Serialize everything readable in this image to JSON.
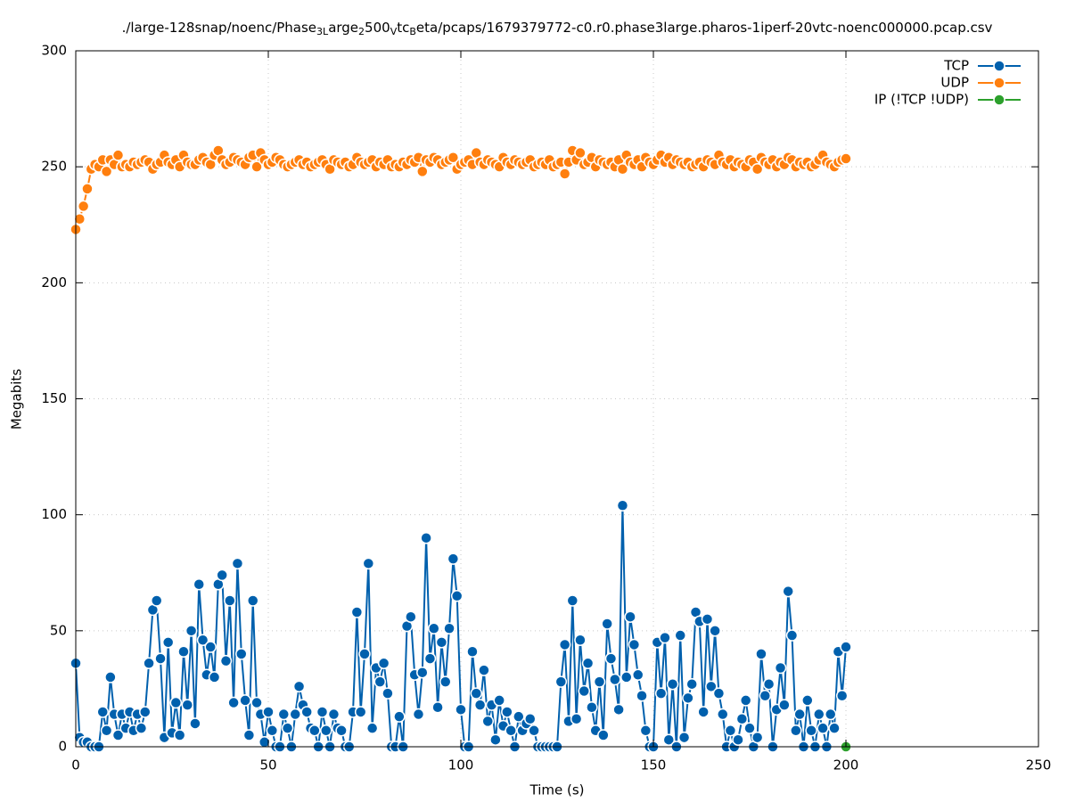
{
  "chart_data": {
    "type": "line",
    "title": [
      "./large-128snap/noenc/Phase",
      "3L",
      "arge",
      "2",
      "500",
      "V",
      "tc",
      "B",
      "eta/pcaps/1679379772-c0.r0.phase3large.pharos-1iperf-20vtc-noenc000000.pcap.csv"
    ],
    "xlabel": "Time (s)",
    "ylabel": "Megabits",
    "xlim": [
      0,
      250
    ],
    "xticks": [
      0,
      50,
      100,
      150,
      200,
      250
    ],
    "ylim": [
      0,
      300
    ],
    "yticks": [
      0,
      50,
      100,
      150,
      200,
      250,
      300
    ],
    "grid": true,
    "legend": "top-right",
    "x": [
      0,
      1,
      2,
      3,
      4,
      5,
      6,
      7,
      8,
      9,
      10,
      11,
      12,
      13,
      14,
      15,
      16,
      17,
      18,
      19,
      20,
      21,
      22,
      23,
      24,
      25,
      26,
      27,
      28,
      29,
      30,
      31,
      32,
      33,
      34,
      35,
      36,
      37,
      38,
      39,
      40,
      41,
      42,
      43,
      44,
      45,
      46,
      47,
      48,
      49,
      50,
      51,
      52,
      53,
      54,
      55,
      56,
      57,
      58,
      59,
      60,
      61,
      62,
      63,
      64,
      65,
      66,
      67,
      68,
      69,
      70,
      71,
      72,
      73,
      74,
      75,
      76,
      77,
      78,
      79,
      80,
      81,
      82,
      83,
      84,
      85,
      86,
      87,
      88,
      89,
      90,
      91,
      92,
      93,
      94,
      95,
      96,
      97,
      98,
      99,
      100,
      101,
      102,
      103,
      104,
      105,
      106,
      107,
      108,
      109,
      110,
      111,
      112,
      113,
      114,
      115,
      116,
      117,
      118,
      119,
      120,
      121,
      122,
      123,
      124,
      125,
      126,
      127,
      128,
      129,
      130,
      131,
      132,
      133,
      134,
      135,
      136,
      137,
      138,
      139,
      140,
      141,
      142,
      143,
      144,
      145,
      146,
      147,
      148,
      149,
      150,
      151,
      152,
      153,
      154,
      155,
      156,
      157,
      158,
      159,
      160,
      161,
      162,
      163,
      164,
      165,
      166,
      167,
      168,
      169,
      170,
      171,
      172,
      173,
      174,
      175,
      176,
      177,
      178,
      179,
      180,
      181,
      182,
      183,
      184,
      185,
      186,
      187,
      188,
      189,
      190,
      191,
      192,
      193,
      194,
      195,
      196,
      197,
      198,
      199,
      200
    ],
    "series": [
      {
        "name": "TCP",
        "color": "#0060ad",
        "values": [
          36,
          4,
          2,
          2,
          0,
          0,
          0,
          15,
          7,
          30,
          14,
          5,
          14,
          8,
          15,
          7,
          14,
          8,
          15,
          36,
          59,
          63,
          38,
          4,
          45,
          6,
          19,
          5,
          41,
          18,
          50,
          10,
          70,
          46,
          31,
          43,
          30,
          70,
          74,
          37,
          63,
          19,
          79,
          40,
          20,
          5,
          63,
          19,
          14,
          2,
          15,
          7,
          0,
          0,
          14,
          8,
          0,
          14,
          26,
          18,
          15,
          8,
          7,
          0,
          15,
          7,
          0,
          14,
          8,
          7,
          0,
          0,
          15,
          58,
          15,
          40,
          79,
          8,
          34,
          28,
          36,
          23,
          0,
          0,
          13,
          0,
          52,
          56,
          31,
          14,
          32,
          90,
          38,
          51,
          17,
          45,
          28,
          51,
          81,
          65,
          16,
          0,
          0,
          41,
          23,
          18,
          33,
          11,
          18,
          3,
          20,
          9,
          15,
          7,
          0,
          13,
          7,
          10,
          12,
          7,
          0,
          0,
          0,
          0,
          0,
          0,
          28,
          44,
          11,
          63,
          12,
          46,
          24,
          36,
          17,
          7,
          28,
          5,
          53,
          38,
          29,
          16,
          104,
          30,
          56,
          44,
          31,
          22,
          7,
          0,
          0,
          45,
          23,
          47,
          3,
          27,
          0,
          48,
          4,
          21,
          27,
          58,
          54,
          15,
          55,
          26,
          50,
          23,
          14,
          0,
          7,
          0,
          3,
          12,
          20,
          8,
          0,
          4,
          40,
          22,
          27,
          0,
          16,
          34,
          18,
          67,
          48,
          7,
          14,
          0,
          20,
          7,
          0,
          14,
          8,
          0,
          14,
          8,
          41,
          22,
          43
        ]
      },
      {
        "name": "UDP",
        "color": "#ff7f0e",
        "values": [
          223,
          227.5,
          233,
          240.5,
          249,
          251,
          250,
          253,
          248,
          253,
          251,
          255,
          250,
          251,
          250,
          252,
          251,
          252,
          253,
          252,
          249,
          251,
          252,
          255,
          252,
          251,
          253,
          250,
          255,
          252,
          251,
          251,
          253,
          254,
          252,
          251,
          255,
          257,
          253,
          251,
          252,
          254,
          253,
          252,
          251,
          254,
          255,
          250,
          256,
          253,
          251,
          252,
          254,
          253,
          251,
          250,
          251,
          252,
          253,
          251,
          252,
          250,
          251,
          252,
          253,
          251,
          249,
          253,
          252,
          251,
          252,
          250,
          251,
          254,
          252,
          251,
          252,
          253,
          250,
          252,
          251,
          253,
          250,
          251,
          250,
          252,
          251,
          253,
          252,
          254,
          248,
          253,
          252,
          254,
          253,
          251,
          252,
          253,
          254,
          249,
          251,
          252,
          253,
          251,
          256,
          252,
          251,
          253,
          252,
          251,
          250,
          254,
          252,
          251,
          253,
          252,
          251,
          252,
          253,
          250,
          251,
          252,
          251,
          253,
          250,
          251,
          252,
          247,
          252,
          257,
          253,
          256,
          251,
          252,
          254,
          250,
          253,
          252,
          251,
          252,
          250,
          253,
          249,
          255,
          252,
          251,
          253,
          250,
          254,
          252,
          251,
          253,
          255,
          252,
          254,
          251,
          253,
          252,
          251,
          252,
          250,
          251,
          252,
          250,
          253,
          252,
          251,
          255,
          252,
          251,
          253,
          250,
          252,
          251,
          250,
          253,
          252,
          249,
          254,
          252,
          251,
          253,
          250,
          252,
          251,
          254,
          253,
          250,
          252,
          251,
          252,
          250,
          251,
          253,
          255,
          252,
          251,
          250,
          252,
          253,
          253.5
        ]
      },
      {
        "name": "IP (!TCP  !UDP)",
        "color": "#2ca02c",
        "x": [
          200
        ],
        "values": [
          0
        ]
      }
    ]
  }
}
